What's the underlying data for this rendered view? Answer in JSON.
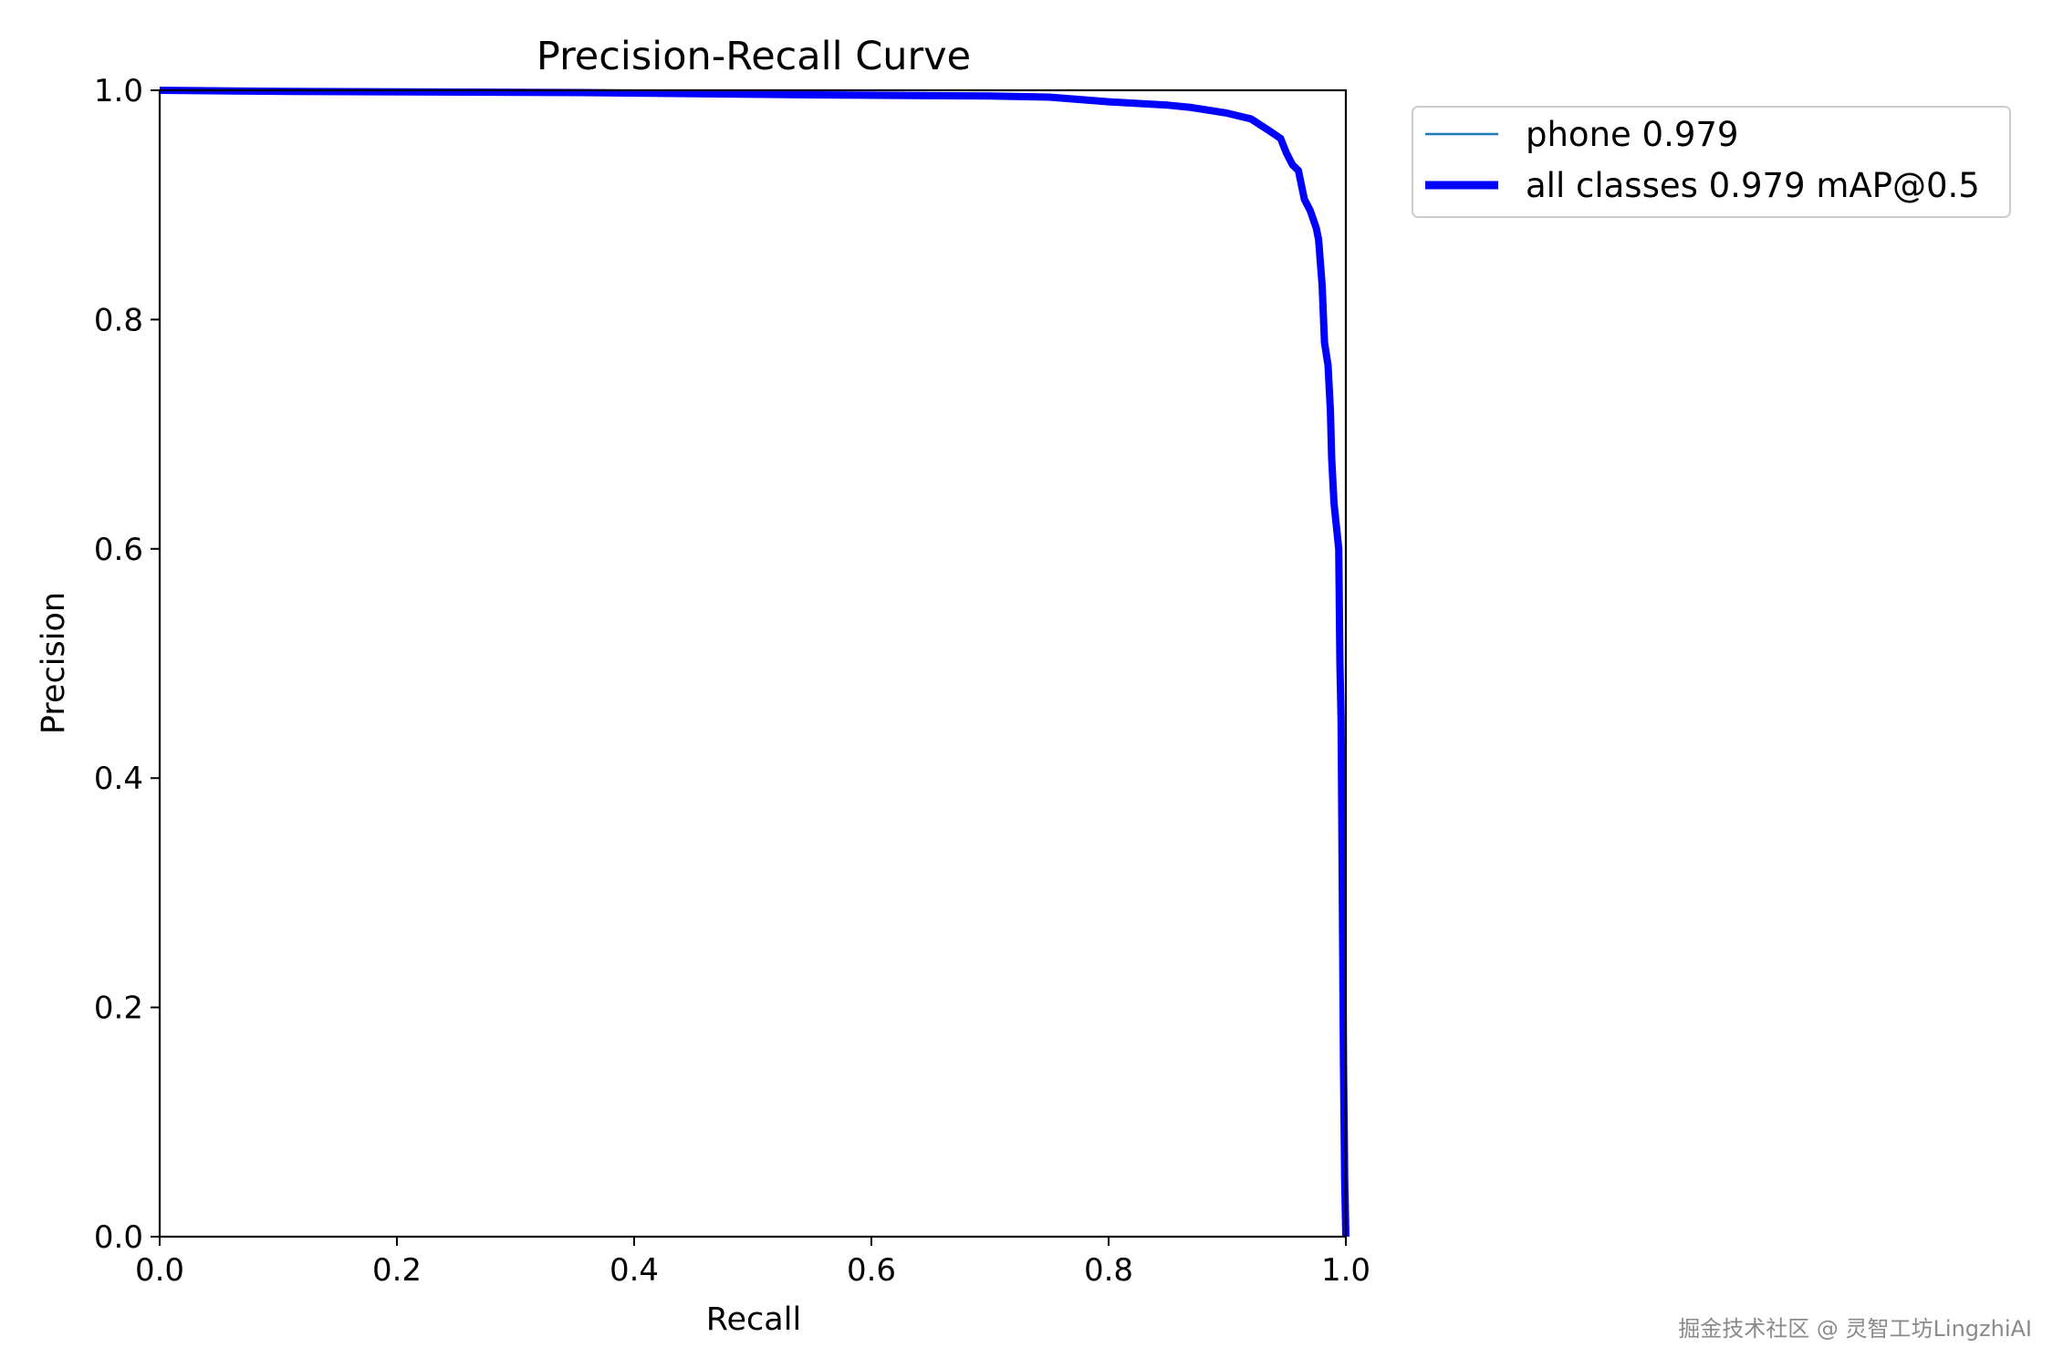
{
  "chart_data": {
    "type": "line",
    "title": "Precision-Recall Curve",
    "xlabel": "Recall",
    "ylabel": "Precision",
    "xlim": [
      0,
      1
    ],
    "ylim": [
      0,
      1
    ],
    "xticks": [
      "0.0",
      "0.2",
      "0.4",
      "0.6",
      "0.8",
      "1.0"
    ],
    "yticks": [
      "0.0",
      "0.2",
      "0.4",
      "0.6",
      "0.8",
      "1.0"
    ],
    "grid": false,
    "legend_position": "outside-top-right",
    "series": [
      {
        "name": "phone 0.979",
        "color": "#1f77b4",
        "style": "thin",
        "x": [
          0.0,
          0.11,
          0.35,
          0.55,
          0.7,
          0.75,
          0.8,
          0.85,
          0.87,
          0.9,
          0.92,
          0.935,
          0.945,
          0.95,
          0.955,
          0.96,
          0.965,
          0.97,
          0.975,
          0.977,
          0.98,
          0.982,
          0.985,
          0.987,
          0.988,
          0.99,
          0.992,
          0.994,
          0.995,
          0.996,
          0.997,
          0.998,
          0.999,
          1.0
        ],
        "y": [
          1.0,
          0.999,
          0.998,
          0.996,
          0.995,
          0.994,
          0.99,
          0.987,
          0.985,
          0.98,
          0.975,
          0.965,
          0.958,
          0.945,
          0.935,
          0.93,
          0.905,
          0.895,
          0.88,
          0.87,
          0.83,
          0.78,
          0.76,
          0.72,
          0.68,
          0.64,
          0.62,
          0.6,
          0.5,
          0.45,
          0.3,
          0.15,
          0.05,
          0.0
        ]
      },
      {
        "name": "all classes 0.979 mAP@0.5",
        "color": "#0000ff",
        "style": "thick",
        "x": [
          0.0,
          0.11,
          0.35,
          0.55,
          0.7,
          0.75,
          0.8,
          0.85,
          0.87,
          0.9,
          0.92,
          0.935,
          0.945,
          0.95,
          0.955,
          0.96,
          0.965,
          0.97,
          0.975,
          0.977,
          0.98,
          0.982,
          0.985,
          0.987,
          0.988,
          0.99,
          0.992,
          0.994,
          0.995,
          0.996,
          0.997,
          0.998,
          0.999,
          1.0
        ],
        "y": [
          1.0,
          0.999,
          0.998,
          0.996,
          0.995,
          0.994,
          0.99,
          0.987,
          0.985,
          0.98,
          0.975,
          0.965,
          0.958,
          0.945,
          0.935,
          0.93,
          0.905,
          0.895,
          0.88,
          0.87,
          0.83,
          0.78,
          0.76,
          0.72,
          0.68,
          0.64,
          0.62,
          0.6,
          0.5,
          0.45,
          0.3,
          0.15,
          0.05,
          0.0
        ]
      }
    ]
  },
  "watermark": "掘金技术社区 @ 灵智工坊LingzhiAI"
}
